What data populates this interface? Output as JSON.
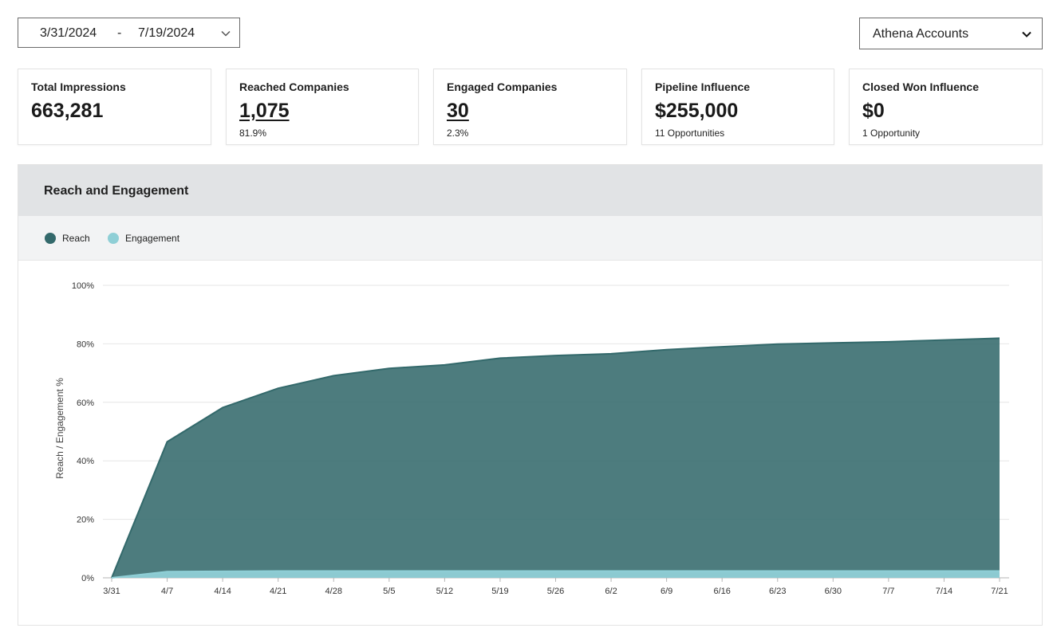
{
  "filters": {
    "date_start": "3/31/2024",
    "date_separator": "-",
    "date_end": "7/19/2024",
    "account_select": "Athena Accounts"
  },
  "kpis": [
    {
      "title": "Total Impressions",
      "value": "663,281",
      "sub": ""
    },
    {
      "title": "Reached Companies",
      "value": "1,075",
      "sub": "81.9%"
    },
    {
      "title": "Engaged Companies",
      "value": "30",
      "sub": "2.3%"
    },
    {
      "title": "Pipeline Influence",
      "value": "$255,000",
      "sub": "11 Opportunities"
    },
    {
      "title": "Closed Won Influence",
      "value": "$0",
      "sub": "1 Opportunity"
    }
  ],
  "panel": {
    "title": "Reach and Engagement"
  },
  "colors": {
    "reach": "#33696b",
    "engagement": "#8fcfd6"
  },
  "chart_data": {
    "type": "area",
    "title": "",
    "xlabel": "",
    "ylabel": "Reach / Engagement %",
    "categories": [
      "3/31",
      "4/7",
      "4/14",
      "4/21",
      "4/28",
      "5/5",
      "5/12",
      "5/19",
      "5/26",
      "6/2",
      "6/9",
      "6/16",
      "6/23",
      "6/30",
      "7/7",
      "7/14",
      "7/21"
    ],
    "yticks": [
      "0%",
      "20%",
      "40%",
      "60%",
      "80%",
      "100%"
    ],
    "ylim": [
      0,
      100
    ],
    "grid": true,
    "legend": "top-left",
    "series": [
      {
        "name": "Reach",
        "values": [
          0,
          46.5,
          58.2,
          64.8,
          69.1,
          71.6,
          72.8,
          75.1,
          76.0,
          76.6,
          78.0,
          79.0,
          79.9,
          80.3,
          80.7,
          81.3,
          81.9
        ]
      },
      {
        "name": "Engagement",
        "values": [
          0,
          2.1,
          2.2,
          2.3,
          2.3,
          2.3,
          2.3,
          2.3,
          2.3,
          2.3,
          2.3,
          2.3,
          2.3,
          2.3,
          2.3,
          2.3,
          2.3
        ]
      }
    ]
  }
}
